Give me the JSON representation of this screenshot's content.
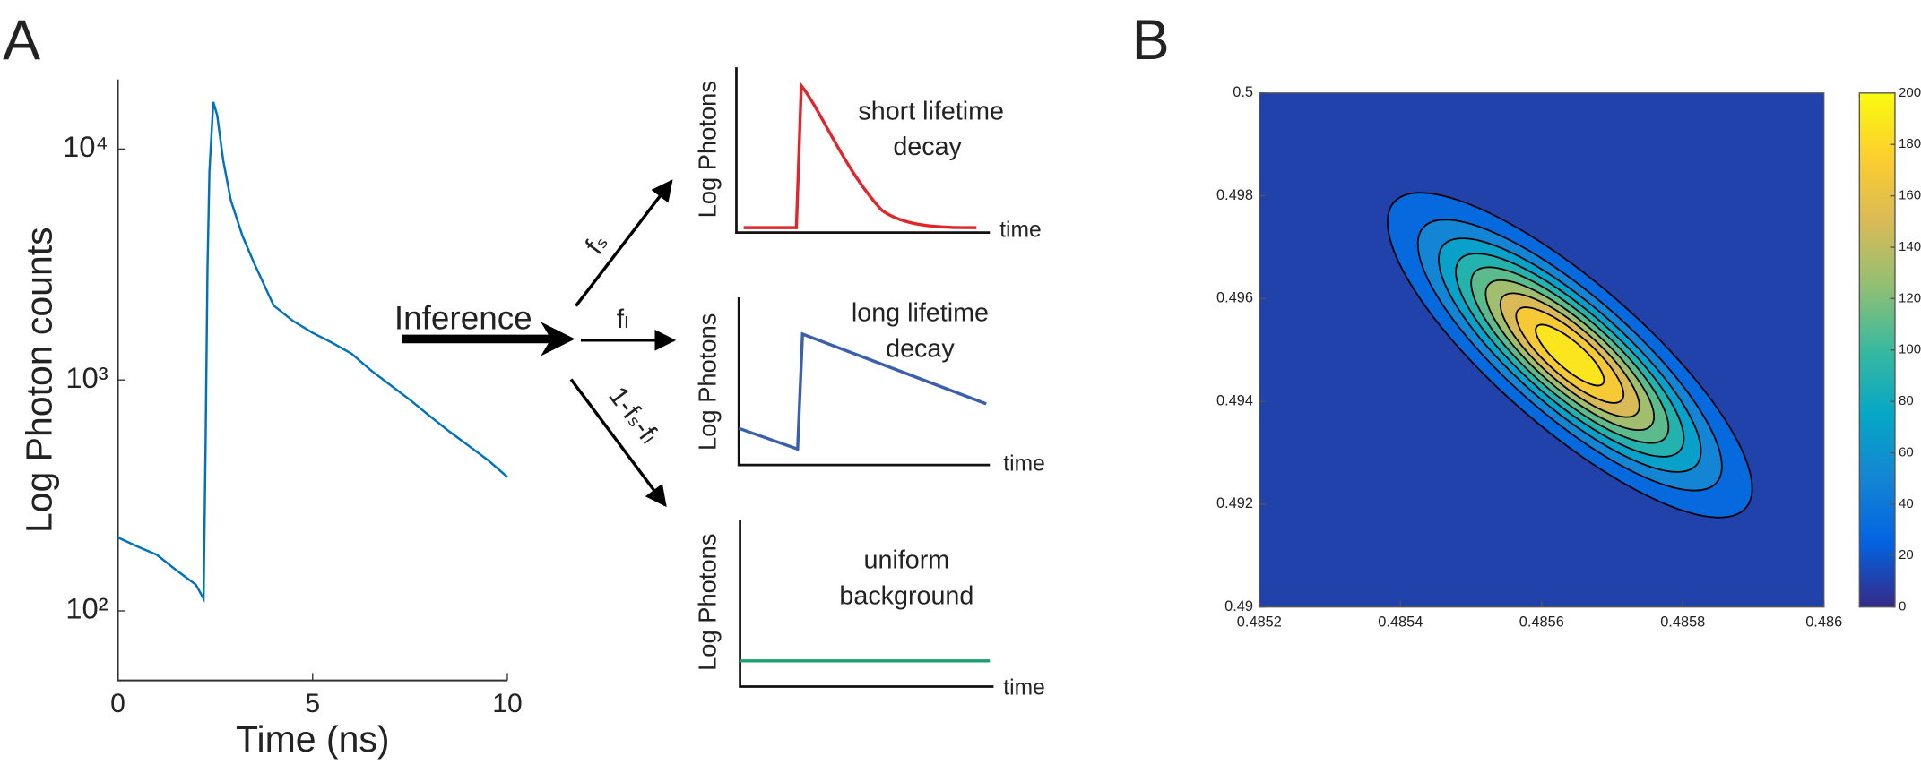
{
  "panel_labels": [
    "A",
    "B"
  ],
  "schematic": {
    "inference": "Inference",
    "arrows": [
      "fₛ",
      "fₗ",
      "1-fₛ-fₗ"
    ],
    "plots": [
      {
        "label_lines": [
          "short lifetime",
          "decay"
        ],
        "y_label": "Log Photons",
        "x_label": "time"
      },
      {
        "label_lines": [
          "long lifetime",
          "decay"
        ],
        "y_label": "Log Photons",
        "x_label": "time"
      },
      {
        "label_lines": [
          "uniform",
          "background"
        ],
        "y_label": "Log Photons",
        "x_label": "time"
      }
    ]
  },
  "chart_data": [
    {
      "type": "line",
      "x_label": "Time (ns)",
      "y_label": "Log Photon counts",
      "log_y": true,
      "x": [
        0,
        0.5,
        1,
        1.5,
        2,
        2.2,
        2.25,
        2.3,
        2.35,
        2.45,
        2.55,
        2.7,
        2.9,
        3.2,
        3.5,
        4,
        4.5,
        5,
        5.5,
        6,
        6.5,
        7,
        7.5,
        8,
        8.5,
        9,
        9.5,
        10
      ],
      "series": [
        {
          "color": "#0072bd",
          "values": [
            208,
            190,
            175,
            150,
            130,
            113,
            500,
            3000,
            8000,
            16000,
            14000,
            9000,
            6000,
            4200,
            3200,
            2100,
            1800,
            1600,
            1450,
            1300,
            1100,
            950,
            820,
            700,
            600,
            520,
            450,
            380
          ]
        }
      ],
      "xlim": [
        0,
        10
      ],
      "ylim": [
        50,
        20000
      ],
      "xticks": [
        0,
        5,
        10
      ],
      "yticks": [
        {
          "value": 100,
          "label": "10²"
        },
        {
          "value": 1000,
          "label": "10³"
        },
        {
          "value": 10000,
          "label": "10⁴"
        }
      ]
    },
    {
      "type": "contour",
      "xlim": [
        0.4852,
        0.486
      ],
      "ylim": [
        0.49,
        0.5
      ],
      "xticks": [
        0.4852,
        0.4854,
        0.4856,
        0.4858,
        0.486
      ],
      "yticks": [
        0.49,
        0.492,
        0.494,
        0.496,
        0.498,
        0.5
      ],
      "clim": [
        0,
        200
      ],
      "cticks": [
        0,
        20,
        40,
        60,
        80,
        100,
        120,
        140,
        160,
        180,
        200
      ],
      "peak": 195,
      "center": [
        0.48564,
        0.4949
      ],
      "sigma": [
        0.000121,
        0.00148
      ],
      "rho": -0.82,
      "levels": [
        20,
        40,
        60,
        80,
        100,
        120,
        140,
        160,
        180
      ]
    }
  ]
}
